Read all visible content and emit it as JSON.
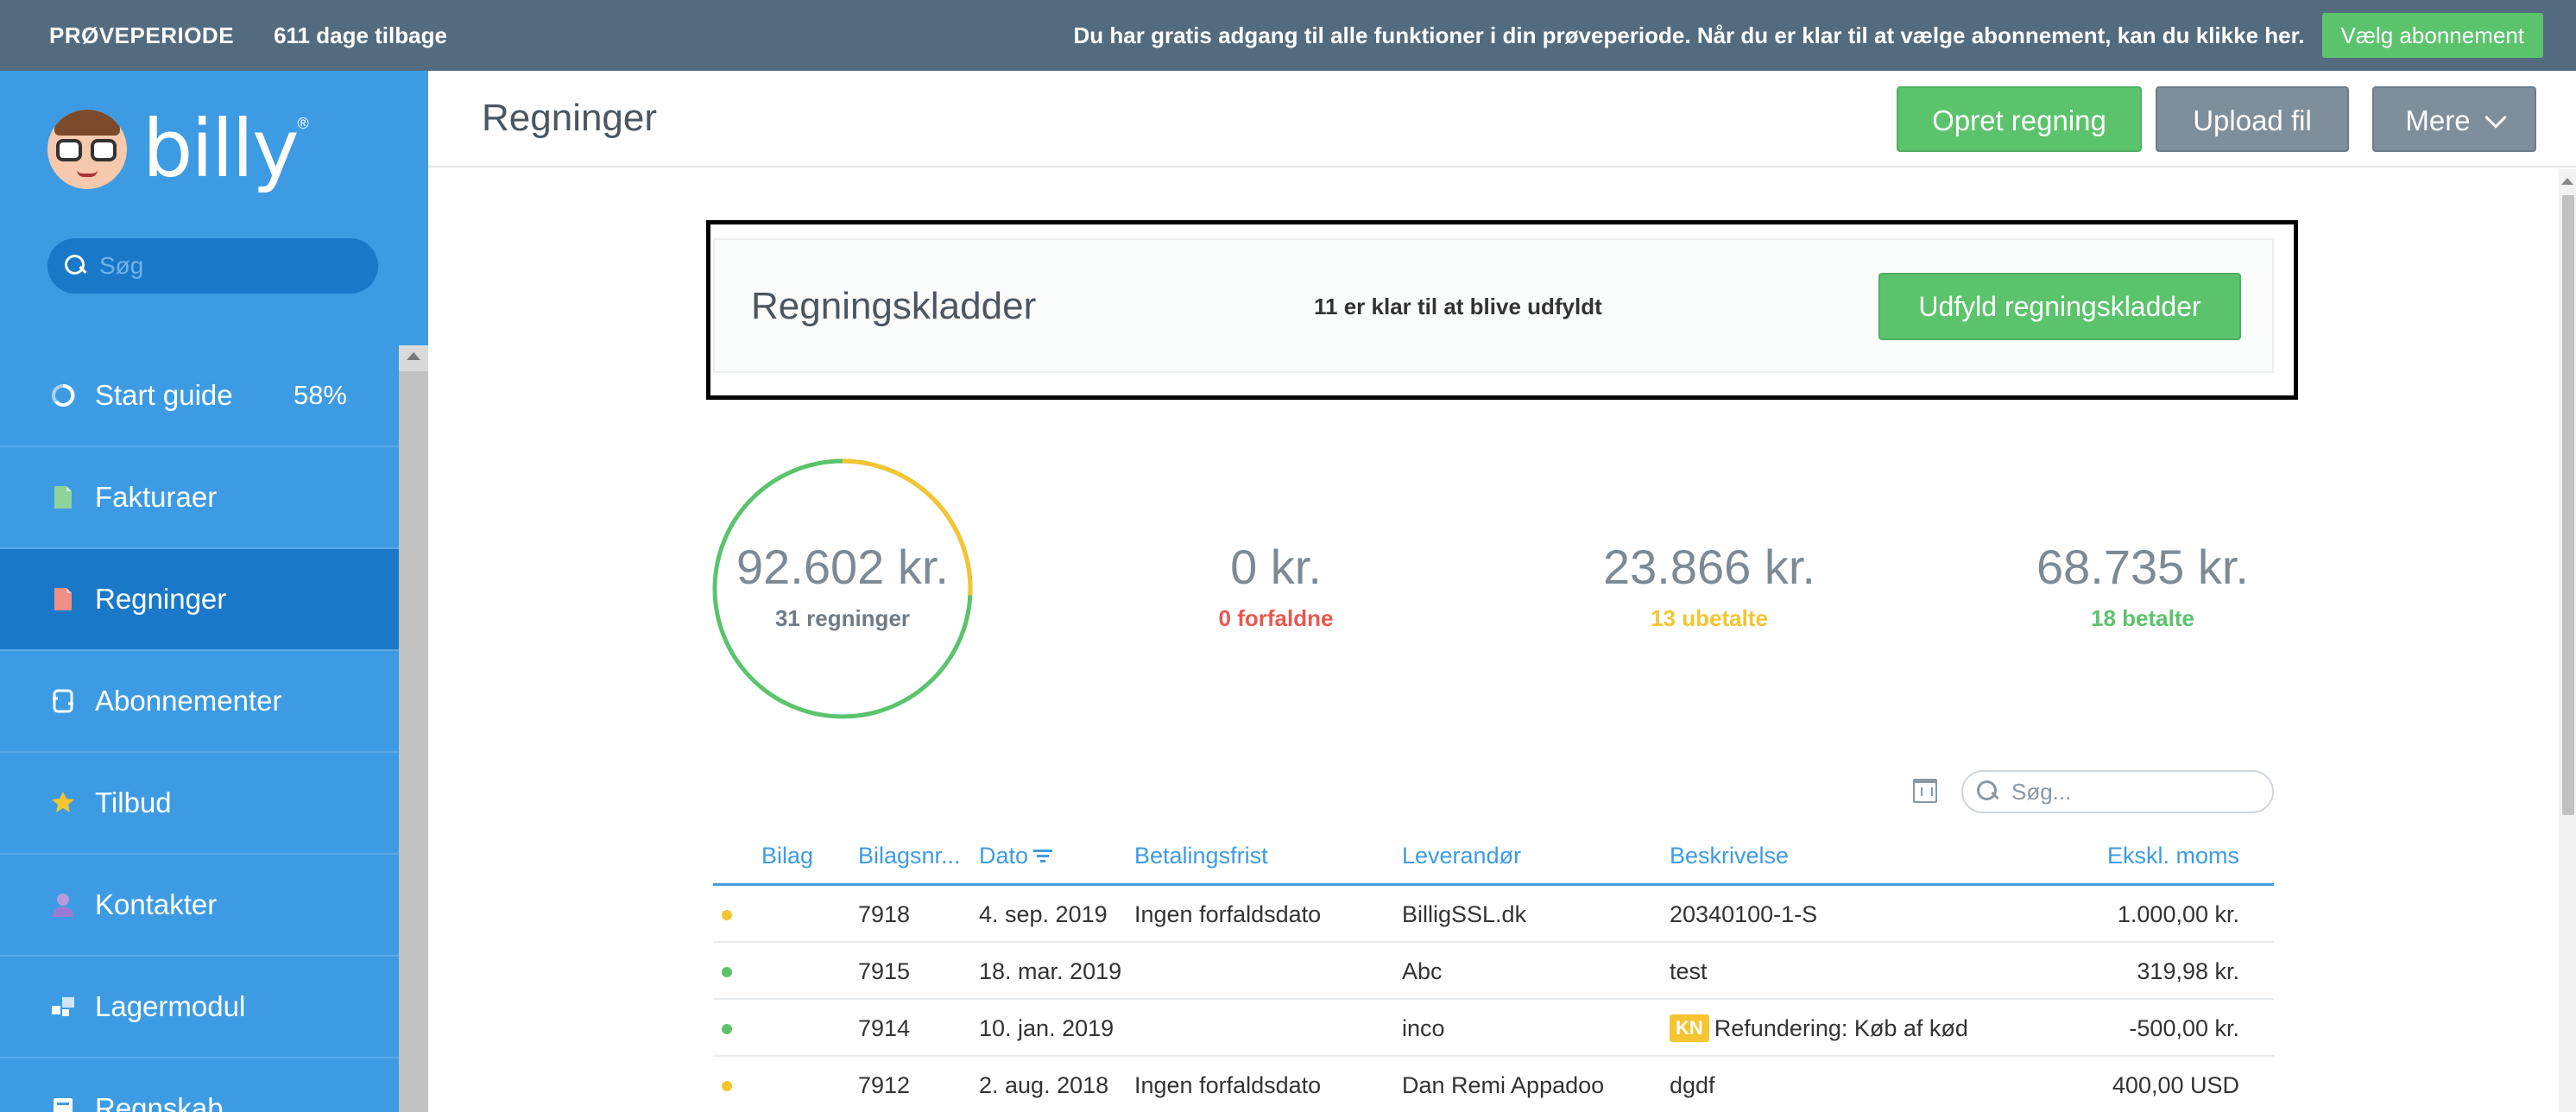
{
  "trial": {
    "label": "PRØVEPERIODE",
    "days_left": "611 dage tilbage",
    "message": "Du har gratis adgang til alle funktioner i din prøveperiode. Når du er klar til at vælge abonnement, kan du klikke her.",
    "choose_button": "Vælg abonnement"
  },
  "logo": {
    "word": "billy",
    "reg": "®"
  },
  "sidebar": {
    "search_placeholder": "Søg",
    "items": [
      {
        "label": "Start guide",
        "icon": "progress-ring-icon",
        "extra": "58%",
        "active": false
      },
      {
        "label": "Fakturaer",
        "icon": "invoice-document-icon",
        "active": false
      },
      {
        "label": "Regninger",
        "icon": "bill-document-icon",
        "active": true
      },
      {
        "label": "Abonnementer",
        "icon": "subscription-icon",
        "active": false
      },
      {
        "label": "Tilbud",
        "icon": "star-badge-icon",
        "active": false
      },
      {
        "label": "Kontakter",
        "icon": "person-icon",
        "active": false
      },
      {
        "label": "Lagermodul",
        "icon": "inventory-icon",
        "active": false
      },
      {
        "label": "Regnskab",
        "icon": "accounting-icon",
        "active": false
      }
    ]
  },
  "header": {
    "title": "Regninger",
    "create_button": "Opret regning",
    "upload_button": "Upload fil",
    "more_button": "Mere"
  },
  "drafts": {
    "title": "Regningskladder",
    "ready_text": "11 er klar til at blive udfyldt",
    "fill_button": "Udfyld regningskladder"
  },
  "stats": {
    "total_amount": "92.602 kr.",
    "total_count": "31 regninger",
    "overdue_amount": "0 kr.",
    "overdue_count": "0 forfaldne",
    "unpaid_amount": "23.866 kr.",
    "unpaid_count": "13 ubetalte",
    "paid_amount": "68.735 kr.",
    "paid_count": "18 betalte",
    "ring_unpaid_fraction": 0.258,
    "colors": {
      "paid": "#5bc36c",
      "unpaid": "#f5c431",
      "overdue": "#e8584e"
    }
  },
  "table": {
    "search_placeholder": "Søg...",
    "columns": {
      "bilag": "Bilag",
      "nr": "Bilagsnr...",
      "dato": "Dato",
      "frist": "Betalingsfrist",
      "lev": "Leverandør",
      "besk": "Beskrivelse",
      "moms": "Ekskl. moms"
    },
    "rows": [
      {
        "status": "unpaid",
        "nr": "7918",
        "dato": "4. sep. 2019",
        "frist": "Ingen forfaldsdato",
        "lev": "BilligSSL.dk",
        "badge": "",
        "besk": "20340100-1-S",
        "moms": "1.000,00 kr."
      },
      {
        "status": "paid",
        "nr": "7915",
        "dato": "18. mar. 2019",
        "frist": "",
        "lev": "Abc",
        "badge": "",
        "besk": "test",
        "moms": "319,98 kr."
      },
      {
        "status": "paid",
        "nr": "7914",
        "dato": "10. jan. 2019",
        "frist": "",
        "lev": "inco",
        "badge": "KN",
        "besk": "Refundering: Køb af kød",
        "moms": "-500,00 kr."
      },
      {
        "status": "unpaid",
        "nr": "7912",
        "dato": "2. aug. 2018",
        "frist": "Ingen forfaldsdato",
        "lev": "Dan Remi Appadoo",
        "badge": "",
        "besk": "dgdf",
        "moms": "400,00 USD"
      }
    ]
  }
}
